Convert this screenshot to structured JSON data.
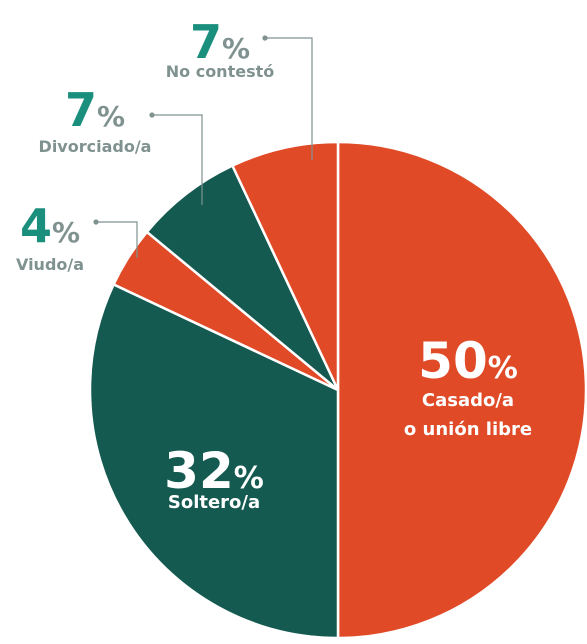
{
  "chart_data": {
    "type": "pie",
    "categories": [
      "Casado/a\no unión libre",
      "Soltero/a",
      "Viudo/a",
      "Divorciado/a",
      "No contestó"
    ],
    "values": [
      50,
      32,
      4,
      7,
      7
    ],
    "value_labels": [
      "50%",
      "32%",
      "4%",
      "7%",
      "7%"
    ],
    "colors": [
      "#e04a27",
      "#145a50",
      "#e04a27",
      "#145a50",
      "#e04a27"
    ]
  }
}
